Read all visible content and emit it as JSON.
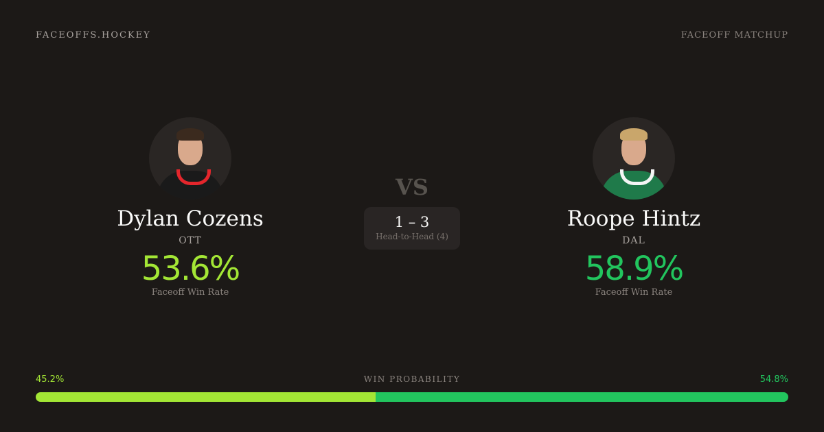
{
  "header": {
    "brand": "FACEOFFS.HOCKEY",
    "tag": "FACEOFF MATCHUP"
  },
  "colors": {
    "player1": "#a3e635",
    "player2": "#22c55e",
    "background": "#1c1917"
  },
  "players": [
    {
      "name": "Dylan Cozens",
      "team": "OTT",
      "rate": "53.6%",
      "rate_label": "Faceoff Win Rate",
      "jersey": "#1a1a1a",
      "collar": "#e4262c",
      "hair": "#3b2a1e",
      "photo": "player-photo"
    },
    {
      "name": "Roope Hintz",
      "team": "DAL",
      "rate": "58.9%",
      "rate_label": "Faceoff Win Rate",
      "jersey": "#1f7a4a",
      "collar": "#f5f5f5",
      "hair": "#c9a66b",
      "photo": "player-photo"
    }
  ],
  "vs": "VS",
  "head_to_head": {
    "score": "1 – 3",
    "label": "Head-to-Head (4)"
  },
  "win_probability": {
    "label": "WIN PROBABILITY",
    "left": "45.2%",
    "right": "54.8%",
    "left_value": 45.2,
    "right_value": 54.8
  }
}
